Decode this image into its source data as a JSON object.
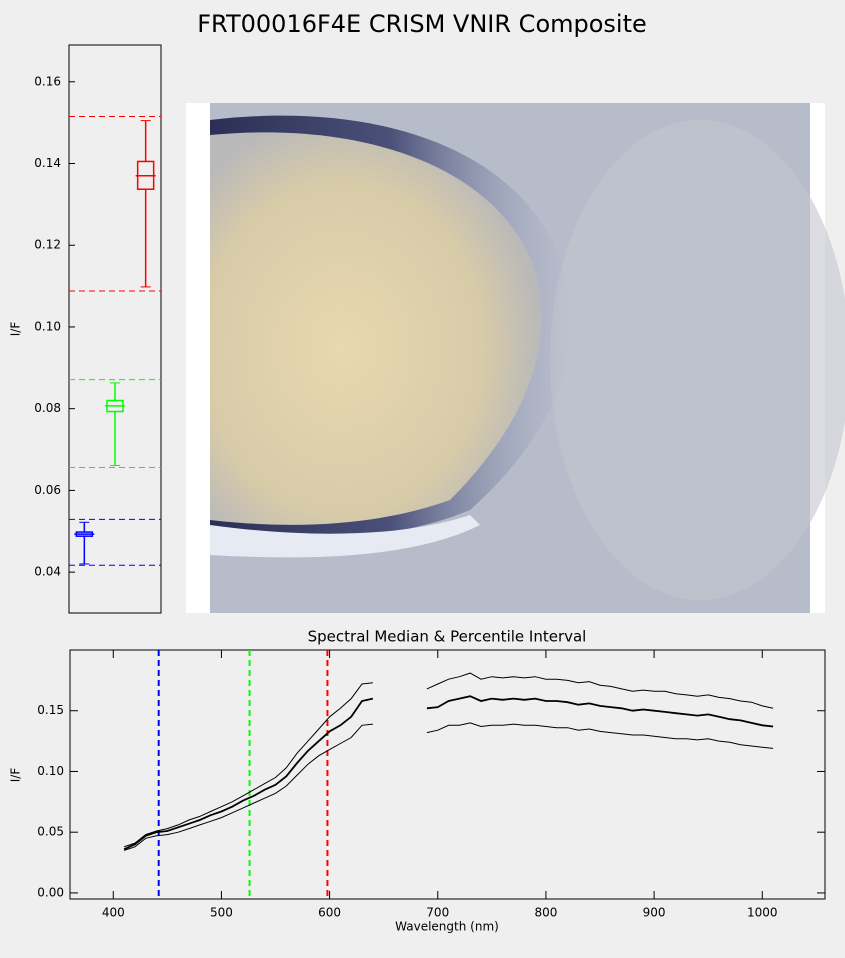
{
  "title": "FRT00016F4E CRISM VNIR Composite",
  "chart_data": [
    {
      "type": "box",
      "ylabel": "I/F",
      "ylim": [
        0.03,
        0.169
      ],
      "yticks": [
        0.04,
        0.06,
        0.08,
        {
          "value": 0.1,
          "label": "0.10"
        },
        0.12,
        0.14,
        0.16
      ],
      "series": [
        {
          "color": "#0000ff",
          "whisker_low": 0.042,
          "q1": 0.0488,
          "median": 0.0493,
          "q3": 0.0498,
          "whisker_high": 0.0522,
          "limits": [
            0.0529,
            0.0417
          ]
        },
        {
          "color": "#00ff00",
          "whisker_low": 0.0661,
          "q1": 0.0793,
          "median": 0.0807,
          "q3": 0.082,
          "whisker_high": 0.0863,
          "limits": [
            0.0871,
            0.0656
          ]
        },
        {
          "color": "#ff0000",
          "whisker_low": 0.1098,
          "q1": 0.1337,
          "median": 0.137,
          "q3": 0.1405,
          "whisker_high": 0.1505,
          "limits": [
            0.1515,
            0.1088
          ]
        }
      ]
    },
    {
      "type": "line",
      "title": "Spectral Median & Percentile Interval",
      "xlabel": "Wavelength (nm)",
      "ylabel": "I/F",
      "xlim": [
        360,
        1058
      ],
      "xticks": [
        400,
        500,
        600,
        700,
        800,
        900,
        1000
      ],
      "ylim": [
        -0.005,
        0.2
      ],
      "yticks": [
        {
          "value": 0,
          "label": "0.00"
        },
        0.05,
        {
          "value": 0.1,
          "label": "0.10"
        },
        0.15
      ],
      "markers": [
        {
          "x": 442,
          "color": "#0000ff"
        },
        {
          "x": 526,
          "color": "#00ff00"
        },
        {
          "x": 598,
          "color": "#ff0000"
        }
      ],
      "x": [
        410,
        420,
        430,
        440,
        450,
        460,
        470,
        480,
        490,
        500,
        510,
        520,
        530,
        540,
        550,
        560,
        570,
        580,
        590,
        600,
        610,
        620,
        630,
        640,
        650,
        660,
        670,
        680,
        690,
        700,
        710,
        720,
        730,
        740,
        750,
        760,
        770,
        780,
        790,
        800,
        810,
        820,
        830,
        840,
        850,
        860,
        870,
        880,
        890,
        900,
        910,
        920,
        930,
        940,
        950,
        960,
        970,
        980,
        990,
        1000,
        1010
      ],
      "series": [
        {
          "color": "#000000",
          "values": [
            0.038,
            0.041,
            0.048,
            0.051,
            0.053,
            0.056,
            0.06,
            0.063,
            0.067,
            0.071,
            0.075,
            0.08,
            0.085,
            0.09,
            0.095,
            0.103,
            0.115,
            0.125,
            0.135,
            0.145,
            0.152,
            0.16,
            0.172,
            0.173,
            null,
            null,
            null,
            null,
            0.168,
            0.172,
            0.176,
            0.178,
            0.181,
            0.176,
            0.178,
            0.177,
            0.178,
            0.177,
            0.178,
            0.176,
            0.176,
            0.175,
            0.173,
            0.174,
            0.171,
            0.17,
            0.168,
            0.166,
            0.167,
            0.166,
            0.166,
            0.164,
            0.163,
            0.162,
            0.163,
            0.161,
            0.16,
            0.158,
            0.157,
            0.154,
            0.152
          ]
        },
        {
          "color": "#000000",
          "values": [
            0.036,
            0.04,
            0.047,
            0.05,
            0.051,
            0.054,
            0.057,
            0.06,
            0.064,
            0.067,
            0.071,
            0.076,
            0.08,
            0.085,
            0.089,
            0.096,
            0.107,
            0.117,
            0.125,
            0.133,
            0.138,
            0.145,
            0.158,
            0.16,
            null,
            null,
            null,
            null,
            0.152,
            0.153,
            0.158,
            0.16,
            0.162,
            0.158,
            0.16,
            0.159,
            0.16,
            0.159,
            0.16,
            0.158,
            0.158,
            0.157,
            0.155,
            0.156,
            0.154,
            0.153,
            0.152,
            0.15,
            0.151,
            0.15,
            0.149,
            0.148,
            0.147,
            0.146,
            0.147,
            0.145,
            0.143,
            0.142,
            0.14,
            0.138,
            0.137
          ]
        },
        {
          "color": "#000000",
          "values": [
            0.035,
            0.038,
            0.045,
            0.047,
            0.048,
            0.05,
            0.053,
            0.056,
            0.059,
            0.062,
            0.066,
            0.07,
            0.074,
            0.078,
            0.082,
            0.088,
            0.097,
            0.106,
            0.113,
            0.118,
            0.123,
            0.128,
            0.138,
            0.139,
            null,
            null,
            null,
            null,
            0.132,
            0.134,
            0.138,
            0.138,
            0.14,
            0.137,
            0.138,
            0.138,
            0.139,
            0.138,
            0.138,
            0.137,
            0.136,
            0.136,
            0.134,
            0.135,
            0.133,
            0.132,
            0.131,
            0.13,
            0.13,
            0.129,
            0.128,
            0.127,
            0.127,
            0.126,
            0.127,
            0.125,
            0.124,
            0.122,
            0.121,
            0.12,
            0.119
          ]
        }
      ]
    }
  ]
}
